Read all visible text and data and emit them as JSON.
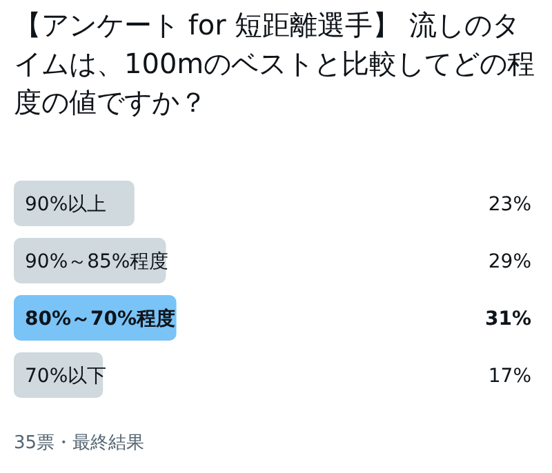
{
  "chart_data": {
    "type": "bar",
    "orientation": "horizontal",
    "title": "【アンケート for 短距離選手】 流しのタイムは、100mのベストと比較してどの程度の値ですか？",
    "categories": [
      "90%以上",
      "90%～85%程度",
      "80%～70%程度",
      "70%以下"
    ],
    "values": [
      23,
      29,
      31,
      17
    ],
    "colors": [
      "#cfd9de",
      "#cfd9de",
      "#79c3f7",
      "#cfd9de"
    ],
    "value_labels": [
      "23%",
      "29%",
      "31%",
      "17%"
    ],
    "annotations": [
      "35票・最終結果"
    ]
  }
}
